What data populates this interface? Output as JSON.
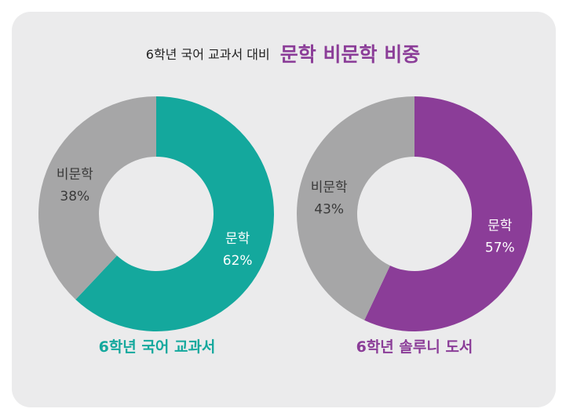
{
  "title": {
    "lead": "6학년 국어 교과서 대비",
    "emphasis": "문학 비문학 비중"
  },
  "colors": {
    "literature_left": "#14a89d",
    "literature_right": "#8b3d98",
    "nonliterature": "#a6a6a7",
    "background": "#ebebec"
  },
  "chart_data": [
    {
      "type": "pie",
      "caption": "6학년 국어 교과서",
      "slices": [
        {
          "label": "문학",
          "value": 62,
          "value_label": "62%",
          "color": "#14a89d"
        },
        {
          "label": "비문학",
          "value": 38,
          "value_label": "38%",
          "color": "#a6a6a7"
        }
      ]
    },
    {
      "type": "pie",
      "caption": "6학년 솔루니 도서",
      "slices": [
        {
          "label": "문학",
          "value": 57,
          "value_label": "57%",
          "color": "#8b3d98"
        },
        {
          "label": "비문학",
          "value": 43,
          "value_label": "43%",
          "color": "#a6a6a7"
        }
      ]
    }
  ]
}
